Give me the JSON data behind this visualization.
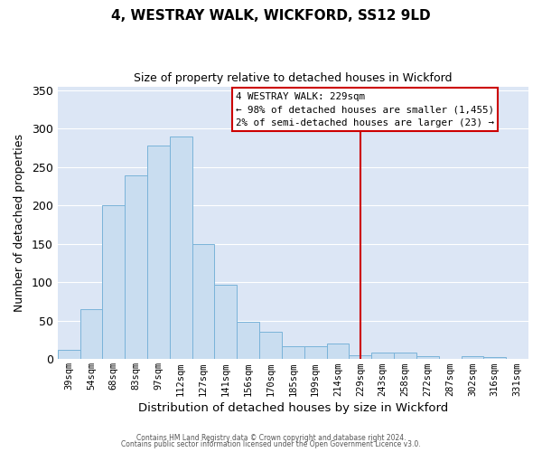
{
  "title": "4, WESTRAY WALK, WICKFORD, SS12 9LD",
  "subtitle": "Size of property relative to detached houses in Wickford",
  "xlabel": "Distribution of detached houses by size in Wickford",
  "ylabel": "Number of detached properties",
  "bar_labels": [
    "39sqm",
    "54sqm",
    "68sqm",
    "83sqm",
    "97sqm",
    "112sqm",
    "127sqm",
    "141sqm",
    "156sqm",
    "170sqm",
    "185sqm",
    "199sqm",
    "214sqm",
    "229sqm",
    "243sqm",
    "258sqm",
    "272sqm",
    "287sqm",
    "302sqm",
    "316sqm",
    "331sqm"
  ],
  "bar_values": [
    12,
    65,
    200,
    239,
    278,
    290,
    150,
    97,
    49,
    36,
    17,
    17,
    20,
    5,
    8,
    8,
    4,
    0,
    4,
    3,
    0
  ],
  "bar_color": "#c9ddf0",
  "bar_edge_color": "#7ab3d9",
  "highlight_line_x_label": "229sqm",
  "highlight_label": "4 WESTRAY WALK: 229sqm",
  "annotation_line1": "← 98% of detached houses are smaller (1,455)",
  "annotation_line2": "2% of semi-detached houses are larger (23) →",
  "annotation_box_color": "#cc0000",
  "ylim": [
    0,
    355
  ],
  "yticks": [
    0,
    50,
    100,
    150,
    200,
    250,
    300,
    350
  ],
  "footer1": "Contains HM Land Registry data © Crown copyright and database right 2024.",
  "footer2": "Contains public sector information licensed under the Open Government Licence v3.0.",
  "plot_bg_color": "#dce6f5",
  "fig_bg_color": "#ffffff",
  "grid_color": "#ffffff",
  "title_fontsize": 11,
  "subtitle_fontsize": 9,
  "ylabel_fontsize": 9,
  "xlabel_fontsize": 9.5
}
